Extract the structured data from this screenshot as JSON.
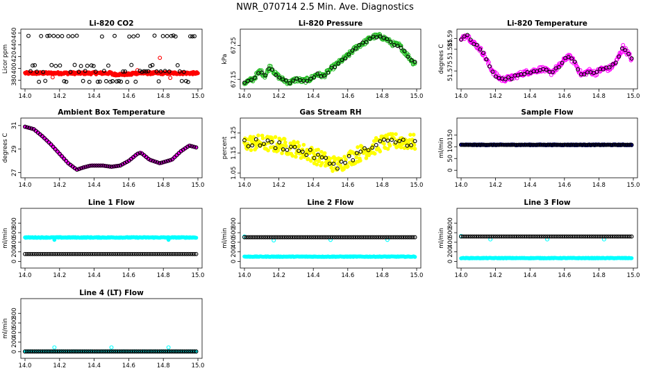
{
  "figure": {
    "title": "NWR_070714  2.5 Min. Ave. Diagnostics",
    "colors": {
      "primary": "#000000",
      "red": "#ff0000",
      "green": "#22bb22",
      "magenta": "#ff00ff",
      "yellow": "#ffff00",
      "blue": "#00008b",
      "cyan": "#00ffff"
    }
  },
  "chart_data": [
    {
      "id": "co2",
      "type": "scatter",
      "title": "Li-820 CO2",
      "ylabel": "Licor ppm",
      "xlim": [
        14.0,
        15.0
      ],
      "ylim": [
        370,
        462
      ],
      "x_ticks": [
        "14.0",
        "14.2",
        "14.4",
        "14.6",
        "14.8",
        "15.0"
      ],
      "y_ticks": [
        380,
        400,
        420,
        440,
        460
      ],
      "series": [
        {
          "name": "continuous",
          "color": "red",
          "filled": true,
          "kind": "co2main"
        },
        {
          "name": "outliers",
          "color": "red",
          "filled": false,
          "points": [
            [
              14.16,
              385
            ],
            [
              14.49,
              394
            ],
            [
              14.65,
              397
            ],
            [
              14.78,
              418
            ],
            [
              14.84,
              384
            ]
          ]
        },
        {
          "name": "samples",
          "color": "black",
          "filled": false,
          "kind": "co2black"
        }
      ]
    },
    {
      "id": "pressure",
      "type": "scatter",
      "title": "Li-820 Pressure",
      "ylabel": "kPa",
      "xlim": [
        14.0,
        15.0
      ],
      "ylim": [
        67.13,
        67.29
      ],
      "x_ticks": [
        "14.0",
        "14.2",
        "14.4",
        "14.6",
        "14.8",
        "15.0"
      ],
      "y_ticks": [
        67.15,
        67.25
      ],
      "series": [
        {
          "name": "continuous",
          "color": "green",
          "filled": false,
          "kind": "pressure",
          "noise": 0.007
        },
        {
          "name": "samples",
          "color": "black",
          "filled": false,
          "kind": "pressure",
          "n": 50,
          "noise": 0.003
        }
      ]
    },
    {
      "id": "licor_temp",
      "type": "scatter",
      "title": "Li-820 Temperature",
      "ylabel": "degrees C",
      "xlim": [
        14.0,
        15.0
      ],
      "ylim": [
        51.568,
        51.593
      ],
      "x_ticks": [
        "14.0",
        "14.2",
        "14.4",
        "14.6",
        "14.8",
        "15.0"
      ],
      "y_ticks": [
        51.575,
        51.585,
        51.59
      ],
      "series": [
        {
          "name": "continuous",
          "color": "magenta",
          "filled": false,
          "kind": "licortemp",
          "noise": 0.0012
        },
        {
          "name": "samples",
          "color": "black",
          "filled": false,
          "kind": "licortemp",
          "n": 55,
          "noise": 0.0006
        }
      ]
    },
    {
      "id": "box_temp",
      "type": "scatter",
      "title": "Ambient Box Temperature",
      "ylabel": "degrees C",
      "xlim": [
        14.0,
        15.0
      ],
      "ylim": [
        26.8,
        31.4
      ],
      "x_ticks": [
        "14.0",
        "14.2",
        "14.4",
        "14.6",
        "14.8",
        "15.0"
      ],
      "y_ticks": [
        27,
        29,
        31
      ],
      "series": [
        {
          "name": "continuous",
          "color": "magenta",
          "filled": true,
          "kind": "boxtemp"
        },
        {
          "name": "samples",
          "color": "black",
          "filled": false,
          "kind": "boxtemp",
          "n": 80
        }
      ]
    },
    {
      "id": "rh",
      "type": "scatter",
      "title": "Gas Stream RH",
      "ylabel": "percent",
      "xlim": [
        14.0,
        15.0
      ],
      "ylim": [
        1.04,
        1.31
      ],
      "x_ticks": [
        "14.0",
        "14.2",
        "14.4",
        "14.6",
        "14.8",
        "15.0"
      ],
      "y_ticks": [
        1.05,
        1.15,
        1.25
      ],
      "series": [
        {
          "name": "continuous",
          "color": "yellow",
          "filled": true,
          "kind": "rh",
          "noise": 0.04
        },
        {
          "name": "samples",
          "color": "black",
          "filled": false,
          "kind": "rh",
          "n": 45,
          "noise": 0.02
        }
      ]
    },
    {
      "id": "sample_flow",
      "type": "scatter",
      "title": "Sample Flow",
      "ylabel": "ml/min",
      "xlim": [
        14.0,
        15.0
      ],
      "ylim": [
        -20,
        210
      ],
      "x_ticks": [
        "14.0",
        "14.2",
        "14.4",
        "14.6",
        "14.8",
        "15.0"
      ],
      "y_ticks": [
        0,
        50,
        100,
        150
      ],
      "series": [
        {
          "name": "continuous",
          "color": "blue",
          "filled": true,
          "kind": "const",
          "value": 108,
          "noise": 2
        },
        {
          "name": "samples",
          "color": "black",
          "filled": false,
          "kind": "const",
          "value": 108,
          "n": 90
        }
      ]
    },
    {
      "id": "line1",
      "type": "scatter",
      "title": "Line 1 Flow",
      "ylabel": "ml/min",
      "xlim": [
        14.0,
        15.0
      ],
      "ylim": [
        -80,
        1050
      ],
      "x_ticks": [
        "14.0",
        "14.2",
        "14.4",
        "14.6",
        "14.8",
        "15.0"
      ],
      "y_ticks": [
        0,
        200,
        400,
        600,
        800
      ],
      "series": [
        {
          "name": "cyan",
          "color": "cyan",
          "filled": true,
          "kind": "const",
          "value": 500,
          "noise": 8,
          "dips": [
            [
              14.17,
              450
            ],
            [
              14.83,
              450
            ]
          ]
        },
        {
          "name": "samples",
          "color": "black",
          "filled": false,
          "kind": "const",
          "value": 155,
          "n": 90
        }
      ]
    },
    {
      "id": "line2",
      "type": "scatter",
      "title": "Line 2 Flow",
      "ylabel": "ml/min",
      "xlim": [
        14.0,
        15.0
      ],
      "ylim": [
        -80,
        1050
      ],
      "x_ticks": [
        "14.0",
        "14.2",
        "14.4",
        "14.6",
        "14.8",
        "15.0"
      ],
      "y_ticks": [
        0,
        200,
        400,
        600,
        800
      ],
      "series": [
        {
          "name": "cyan-low",
          "color": "cyan",
          "filled": true,
          "kind": "const",
          "value": 100,
          "noise": 6
        },
        {
          "name": "cyan-outliers",
          "color": "cyan",
          "filled": false,
          "points": [
            [
              14.0,
              520
            ],
            [
              14.17,
              440
            ],
            [
              14.5,
              450
            ],
            [
              14.83,
              450
            ]
          ]
        },
        {
          "name": "samples",
          "color": "black",
          "filled": false,
          "kind": "const",
          "value": 505,
          "n": 90
        }
      ]
    },
    {
      "id": "line3",
      "type": "scatter",
      "title": "Line 3 Flow",
      "ylabel": "ml/min",
      "xlim": [
        14.0,
        15.0
      ],
      "ylim": [
        -80,
        1050
      ],
      "x_ticks": [
        "14.0",
        "14.2",
        "14.4",
        "14.6",
        "14.8",
        "15.0"
      ],
      "y_ticks": [
        0,
        200,
        400,
        600,
        800
      ],
      "series": [
        {
          "name": "cyan-low",
          "color": "cyan",
          "filled": true,
          "kind": "const",
          "value": 70,
          "noise": 6
        },
        {
          "name": "cyan-outliers",
          "color": "cyan",
          "filled": false,
          "points": [
            [
              14.0,
              530
            ],
            [
              14.17,
              460
            ],
            [
              14.5,
              460
            ],
            [
              14.83,
              460
            ]
          ]
        },
        {
          "name": "samples",
          "color": "black",
          "filled": false,
          "kind": "const",
          "value": 520,
          "n": 90
        }
      ]
    },
    {
      "id": "line4",
      "type": "scatter",
      "title": "Line 4 (LT) Flow",
      "ylabel": "ml/min",
      "xlim": [
        14.0,
        15.0
      ],
      "ylim": [
        -80,
        1050
      ],
      "x_ticks": [
        "14.0",
        "14.2",
        "14.4",
        "14.6",
        "14.8",
        "15.0"
      ],
      "y_ticks": [
        0,
        200,
        400,
        600,
        800
      ],
      "series": [
        {
          "name": "cyan",
          "color": "cyan",
          "filled": true,
          "kind": "const",
          "value": 5,
          "noise": 2
        },
        {
          "name": "cyan-outliers",
          "color": "cyan",
          "filled": false,
          "points": [
            [
              14.17,
              90
            ],
            [
              14.5,
              90
            ],
            [
              14.83,
              90
            ]
          ]
        },
        {
          "name": "samples",
          "color": "black",
          "filled": false,
          "kind": "const",
          "value": 5,
          "n": 90
        }
      ]
    }
  ]
}
